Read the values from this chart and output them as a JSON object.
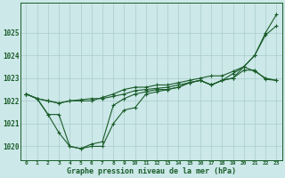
{
  "title": "Graphe pression niveau de la mer (hPa)",
  "bg_color": "#cce8e8",
  "grid_color": "#aacccc",
  "line_color": "#1a5c2a",
  "xlim": [
    -0.5,
    23.5
  ],
  "ylim": [
    1019.4,
    1026.3
  ],
  "yticks": [
    1020,
    1021,
    1022,
    1023,
    1024,
    1025
  ],
  "xticks": [
    0,
    1,
    2,
    3,
    4,
    5,
    6,
    7,
    8,
    9,
    10,
    11,
    12,
    13,
    14,
    15,
    16,
    17,
    18,
    19,
    20,
    21,
    22,
    23
  ],
  "series": [
    [
      1022.3,
      1022.1,
      1021.4,
      1020.6,
      1020.0,
      1019.9,
      1020.0,
      1020.0,
      1021.0,
      1021.6,
      1021.7,
      1022.3,
      1022.4,
      1022.5,
      1022.6,
      1022.8,
      1022.9,
      1022.7,
      1022.9,
      1023.0,
      1023.5,
      1024.0,
      1025.0,
      1025.8
    ],
    [
      1022.3,
      1022.1,
      1021.4,
      1021.4,
      1020.0,
      1019.9,
      1020.1,
      1020.2,
      1021.8,
      1022.1,
      1022.3,
      1022.4,
      1022.5,
      1022.5,
      1022.6,
      1022.8,
      1022.9,
      1022.7,
      1022.9,
      1023.2,
      1023.5,
      1024.0,
      1024.9,
      1025.3
    ],
    [
      1022.3,
      1022.1,
      1022.0,
      1021.9,
      1022.0,
      1022.0,
      1022.0,
      1022.15,
      1022.3,
      1022.5,
      1022.6,
      1022.6,
      1022.7,
      1022.7,
      1022.8,
      1022.9,
      1023.0,
      1023.1,
      1023.1,
      1023.3,
      1023.5,
      1023.3,
      1023.0,
      1022.9
    ],
    [
      1022.3,
      1022.1,
      1022.0,
      1021.9,
      1022.0,
      1022.05,
      1022.1,
      1022.1,
      1022.2,
      1022.3,
      1022.45,
      1022.5,
      1022.55,
      1022.6,
      1022.7,
      1022.8,
      1022.9,
      1022.7,
      1022.9,
      1023.0,
      1023.35,
      1023.35,
      1022.95,
      1022.9
    ]
  ]
}
